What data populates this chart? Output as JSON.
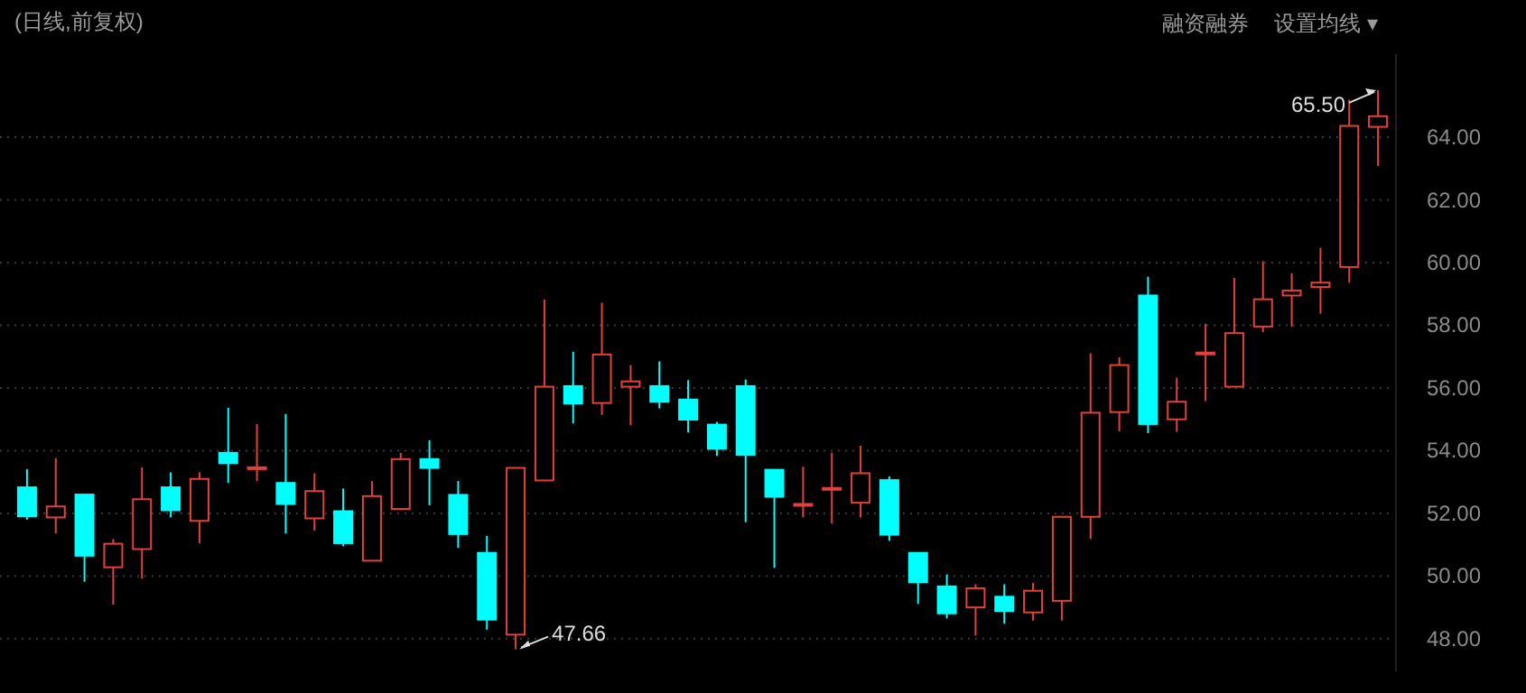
{
  "chart_data": {
    "type": "candlestick",
    "subtitle": "(日线,前复权)",
    "categories": [
      null,
      null,
      null,
      null,
      null,
      null,
      null,
      null,
      null,
      null,
      null,
      null,
      null,
      null,
      null,
      null,
      null,
      null,
      null,
      null,
      null,
      null,
      null,
      null,
      null,
      null,
      null,
      null,
      null,
      null,
      null,
      null,
      null,
      null,
      null,
      null,
      null,
      null,
      null,
      null,
      null,
      null,
      null,
      null,
      null,
      null,
      null,
      null
    ],
    "ohlc": [
      [
        52.83,
        53.41,
        51.8,
        51.91
      ],
      [
        51.87,
        53.76,
        51.36,
        52.22
      ],
      [
        52.6,
        52.6,
        49.82,
        50.65
      ],
      [
        50.28,
        51.18,
        49.09,
        51.03
      ],
      [
        50.86,
        53.47,
        49.92,
        52.45
      ],
      [
        52.83,
        53.31,
        51.87,
        52.1
      ],
      [
        51.76,
        53.31,
        51.05,
        53.1
      ],
      [
        53.93,
        55.37,
        52.97,
        53.6
      ],
      [
        53.42,
        54.85,
        53.03,
        53.47
      ],
      [
        52.97,
        55.17,
        51.36,
        52.3
      ],
      [
        51.84,
        53.28,
        51.45,
        52.71
      ],
      [
        52.07,
        52.79,
        50.95,
        51.05
      ],
      [
        50.49,
        53.03,
        50.49,
        52.55
      ],
      [
        52.14,
        53.93,
        52.14,
        53.73
      ],
      [
        53.73,
        54.33,
        52.26,
        53.45
      ],
      [
        52.59,
        53.03,
        50.9,
        51.34
      ],
      [
        50.74,
        51.28,
        48.29,
        48.61
      ],
      [
        48.13,
        53.45,
        47.66,
        53.45
      ],
      [
        53.05,
        58.82,
        53.05,
        56.04
      ],
      [
        56.06,
        57.15,
        54.87,
        55.5
      ],
      [
        55.52,
        58.72,
        55.14,
        57.07
      ],
      [
        56.04,
        56.73,
        54.81,
        56.21
      ],
      [
        56.06,
        56.85,
        55.35,
        55.56
      ],
      [
        55.63,
        56.25,
        54.58,
        54.99
      ],
      [
        54.83,
        54.92,
        53.83,
        54.06
      ],
      [
        56.06,
        56.27,
        51.72,
        53.87
      ],
      [
        53.39,
        53.39,
        50.26,
        52.53
      ],
      [
        52.26,
        53.49,
        51.87,
        52.3
      ],
      [
        52.77,
        53.93,
        51.68,
        52.81
      ],
      [
        52.34,
        54.16,
        51.87,
        53.28
      ],
      [
        53.06,
        53.18,
        51.13,
        51.32
      ],
      [
        50.74,
        50.74,
        49.11,
        49.8
      ],
      [
        49.67,
        50.05,
        48.65,
        48.81
      ],
      [
        49.0,
        49.74,
        48.1,
        49.61
      ],
      [
        49.34,
        49.74,
        48.48,
        48.88
      ],
      [
        48.84,
        49.78,
        48.58,
        49.53
      ],
      [
        49.21,
        51.89,
        48.58,
        51.89
      ],
      [
        51.89,
        57.11,
        51.18,
        55.21
      ],
      [
        55.23,
        56.98,
        54.62,
        56.73
      ],
      [
        58.95,
        59.55,
        54.56,
        54.85
      ],
      [
        55.0,
        56.33,
        54.6,
        55.56
      ],
      [
        57.09,
        58.05,
        55.58,
        57.13
      ],
      [
        56.04,
        59.51,
        56.04,
        57.75
      ],
      [
        57.96,
        60.04,
        57.78,
        58.83
      ],
      [
        58.95,
        59.66,
        57.96,
        59.11
      ],
      [
        59.22,
        60.47,
        58.37,
        59.36
      ],
      [
        59.86,
        65.2,
        59.36,
        64.36
      ],
      [
        64.33,
        65.5,
        63.08,
        64.67
      ]
    ],
    "colors": [
      "#00ffff",
      "#e0413e",
      "#00ffff",
      "#e0413e",
      "#e0413e",
      "#00ffff",
      "#e0413e",
      "#00ffff",
      "#e0413e",
      "#00ffff",
      "#e0413e",
      "#00ffff",
      "#e0413e",
      "#e0413e",
      "#00ffff",
      "#00ffff",
      "#00ffff",
      "#e0413e",
      "#e0413e",
      "#00ffff",
      "#e0413e",
      "#e0413e",
      "#00ffff",
      "#00ffff",
      "#00ffff",
      "#00ffff",
      "#00ffff",
      "#e0413e",
      "#e0413e",
      "#e0413e",
      "#00ffff",
      "#00ffff",
      "#00ffff",
      "#e0413e",
      "#00ffff",
      "#e0413e",
      "#e0413e",
      "#e0413e",
      "#e0413e",
      "#00ffff",
      "#e0413e",
      "#e0413e",
      "#e0413e",
      "#e0413e",
      "#e0413e",
      "#e0413e",
      "#e0413e",
      "#e0413e"
    ],
    "ylim": [
      46.96,
      66.65
    ],
    "yticks": [
      {
        "value": 48,
        "label": "48.00"
      },
      {
        "value": 50,
        "label": "50.00"
      },
      {
        "value": 52,
        "label": "52.00"
      },
      {
        "value": 54,
        "label": "54.00"
      },
      {
        "value": 56,
        "label": "56.00"
      },
      {
        "value": 58,
        "label": "58.00"
      },
      {
        "value": 60,
        "label": "60.00"
      },
      {
        "value": 62,
        "label": "62.00"
      },
      {
        "value": 64,
        "label": "64.00"
      }
    ],
    "grid": "y",
    "annotations": [
      "47.66",
      "65.50",
      "融资融券",
      "设置均线 ▾"
    ]
  }
}
